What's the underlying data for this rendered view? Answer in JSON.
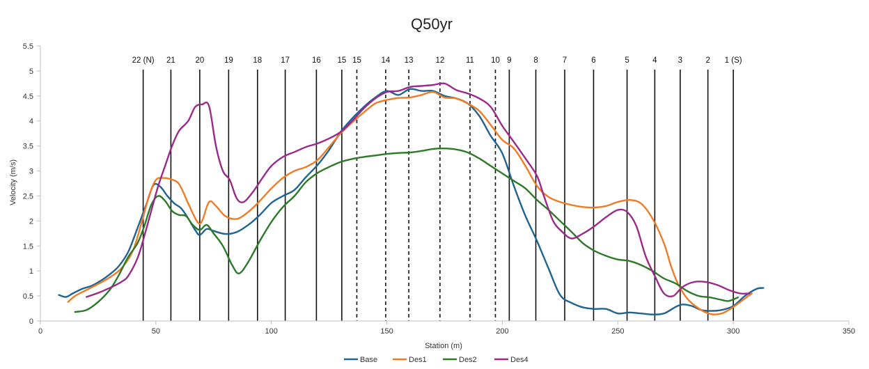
{
  "chart_data": {
    "type": "line",
    "title": "Q50yr",
    "xlabel": "Station (m)",
    "ylabel": "Velocity (m/s)",
    "xlim": [
      0,
      350
    ],
    "ylim": [
      0,
      5.5
    ],
    "x_ticks": [
      0,
      50,
      100,
      150,
      200,
      250,
      300,
      350
    ],
    "y_ticks": [
      0,
      0.5,
      1,
      1.5,
      2,
      2.5,
      3,
      3.5,
      4,
      4.5,
      5,
      5.5
    ],
    "grid": false,
    "legend": "bottom",
    "cross_sections": [
      {
        "label": "22 (N)",
        "x": 44.5,
        "style": "solid"
      },
      {
        "label": "21",
        "x": 56.5,
        "style": "solid"
      },
      {
        "label": "20",
        "x": 69,
        "style": "solid"
      },
      {
        "label": "19",
        "x": 81.5,
        "style": "solid"
      },
      {
        "label": "18",
        "x": 94,
        "style": "solid"
      },
      {
        "label": "17",
        "x": 106,
        "style": "solid"
      },
      {
        "label": "16",
        "x": 119.5,
        "style": "solid"
      },
      {
        "label": "15",
        "x": 130.5,
        "style": "solid"
      },
      {
        "label": "15",
        "x": 137,
        "style": "dashed"
      },
      {
        "label": "14",
        "x": 149.5,
        "style": "dashed"
      },
      {
        "label": "13",
        "x": 159.5,
        "style": "dashed"
      },
      {
        "label": "12",
        "x": 173,
        "style": "dashed"
      },
      {
        "label": "11",
        "x": 186,
        "style": "dashed"
      },
      {
        "label": "10",
        "x": 197,
        "style": "dashed"
      },
      {
        "label": "9",
        "x": 203,
        "style": "solid"
      },
      {
        "label": "8",
        "x": 214.5,
        "style": "solid"
      },
      {
        "label": "7",
        "x": 227,
        "style": "solid"
      },
      {
        "label": "6",
        "x": 239.5,
        "style": "solid"
      },
      {
        "label": "5",
        "x": 254,
        "style": "solid"
      },
      {
        "label": "4",
        "x": 266,
        "style": "solid"
      },
      {
        "label": "3",
        "x": 277,
        "style": "solid"
      },
      {
        "label": "2",
        "x": 289,
        "style": "solid"
      },
      {
        "label": "1 (S)",
        "x": 300,
        "style": "solid"
      }
    ],
    "series": [
      {
        "name": "Base",
        "color": "#1f6391",
        "points": [
          [
            8,
            0.52
          ],
          [
            11,
            0.48
          ],
          [
            14,
            0.55
          ],
          [
            18,
            0.64
          ],
          [
            22,
            0.7
          ],
          [
            26,
            0.8
          ],
          [
            30,
            0.93
          ],
          [
            34,
            1.1
          ],
          [
            38,
            1.38
          ],
          [
            42,
            1.85
          ],
          [
            46,
            2.35
          ],
          [
            49,
            2.72
          ],
          [
            52,
            2.68
          ],
          [
            55,
            2.5
          ],
          [
            58,
            2.35
          ],
          [
            61,
            2.25
          ],
          [
            64,
            2.05
          ],
          [
            67,
            1.82
          ],
          [
            69,
            1.72
          ],
          [
            72,
            1.84
          ],
          [
            75,
            1.8
          ],
          [
            80,
            1.74
          ],
          [
            85,
            1.78
          ],
          [
            90,
            1.92
          ],
          [
            95,
            2.12
          ],
          [
            100,
            2.36
          ],
          [
            105,
            2.5
          ],
          [
            110,
            2.62
          ],
          [
            115,
            2.88
          ],
          [
            120,
            3.12
          ],
          [
            125,
            3.42
          ],
          [
            130,
            3.78
          ],
          [
            135,
            4.05
          ],
          [
            140,
            4.28
          ],
          [
            145,
            4.47
          ],
          [
            150,
            4.6
          ],
          [
            155,
            4.52
          ],
          [
            160,
            4.64
          ],
          [
            165,
            4.6
          ],
          [
            170,
            4.6
          ],
          [
            175,
            4.5
          ],
          [
            180,
            4.45
          ],
          [
            185,
            4.35
          ],
          [
            190,
            4.1
          ],
          [
            195,
            3.7
          ],
          [
            200,
            3.35
          ],
          [
            205,
            2.7
          ],
          [
            210,
            2.1
          ],
          [
            215,
            1.6
          ],
          [
            220,
            1.05
          ],
          [
            225,
            0.52
          ],
          [
            230,
            0.36
          ],
          [
            235,
            0.27
          ],
          [
            240,
            0.24
          ],
          [
            245,
            0.24
          ],
          [
            250,
            0.15
          ],
          [
            255,
            0.17
          ],
          [
            260,
            0.15
          ],
          [
            265,
            0.13
          ],
          [
            270,
            0.15
          ],
          [
            275,
            0.28
          ],
          [
            278,
            0.33
          ],
          [
            282,
            0.3
          ],
          [
            286,
            0.22
          ],
          [
            290,
            0.2
          ],
          [
            295,
            0.22
          ],
          [
            300,
            0.3
          ],
          [
            305,
            0.5
          ],
          [
            310,
            0.64
          ],
          [
            313,
            0.66
          ]
        ]
      },
      {
        "name": "Des1",
        "color": "#f07b25",
        "points": [
          [
            12,
            0.38
          ],
          [
            15,
            0.5
          ],
          [
            20,
            0.62
          ],
          [
            25,
            0.74
          ],
          [
            30,
            0.87
          ],
          [
            35,
            1.05
          ],
          [
            40,
            1.4
          ],
          [
            44,
            2.0
          ],
          [
            47,
            2.5
          ],
          [
            50,
            2.82
          ],
          [
            53,
            2.86
          ],
          [
            56,
            2.84
          ],
          [
            60,
            2.74
          ],
          [
            64,
            2.35
          ],
          [
            68,
            1.98
          ],
          [
            70,
            2.0
          ],
          [
            73,
            2.38
          ],
          [
            76,
            2.3
          ],
          [
            80,
            2.1
          ],
          [
            85,
            2.04
          ],
          [
            90,
            2.18
          ],
          [
            95,
            2.4
          ],
          [
            100,
            2.65
          ],
          [
            105,
            2.86
          ],
          [
            110,
            3.0
          ],
          [
            115,
            3.08
          ],
          [
            120,
            3.22
          ],
          [
            125,
            3.48
          ],
          [
            130,
            3.75
          ],
          [
            135,
            3.97
          ],
          [
            140,
            4.17
          ],
          [
            145,
            4.35
          ],
          [
            150,
            4.42
          ],
          [
            155,
            4.46
          ],
          [
            160,
            4.47
          ],
          [
            165,
            4.52
          ],
          [
            170,
            4.58
          ],
          [
            175,
            4.47
          ],
          [
            180,
            4.45
          ],
          [
            185,
            4.35
          ],
          [
            190,
            4.2
          ],
          [
            195,
            3.92
          ],
          [
            200,
            3.62
          ],
          [
            205,
            3.45
          ],
          [
            210,
            3.1
          ],
          [
            215,
            2.7
          ],
          [
            220,
            2.48
          ],
          [
            225,
            2.38
          ],
          [
            230,
            2.32
          ],
          [
            235,
            2.28
          ],
          [
            240,
            2.27
          ],
          [
            245,
            2.3
          ],
          [
            250,
            2.38
          ],
          [
            255,
            2.42
          ],
          [
            260,
            2.35
          ],
          [
            265,
            2.05
          ],
          [
            270,
            1.55
          ],
          [
            273,
            1.1
          ],
          [
            276,
            0.75
          ],
          [
            280,
            0.45
          ],
          [
            285,
            0.25
          ],
          [
            290,
            0.14
          ],
          [
            295,
            0.15
          ],
          [
            300,
            0.28
          ],
          [
            305,
            0.45
          ],
          [
            308,
            0.55
          ]
        ]
      },
      {
        "name": "Des2",
        "color": "#2c7a28",
        "points": [
          [
            15,
            0.18
          ],
          [
            20,
            0.22
          ],
          [
            25,
            0.38
          ],
          [
            30,
            0.62
          ],
          [
            34,
            0.92
          ],
          [
            38,
            1.28
          ],
          [
            42,
            1.55
          ],
          [
            45,
            1.9
          ],
          [
            48,
            2.32
          ],
          [
            51,
            2.5
          ],
          [
            54,
            2.4
          ],
          [
            57,
            2.2
          ],
          [
            60,
            2.12
          ],
          [
            63,
            2.1
          ],
          [
            66,
            1.92
          ],
          [
            69,
            1.82
          ],
          [
            72,
            1.92
          ],
          [
            75,
            1.75
          ],
          [
            79,
            1.5
          ],
          [
            83,
            1.12
          ],
          [
            86,
            0.95
          ],
          [
            90,
            1.18
          ],
          [
            95,
            1.6
          ],
          [
            100,
            1.98
          ],
          [
            105,
            2.28
          ],
          [
            110,
            2.5
          ],
          [
            115,
            2.78
          ],
          [
            120,
            2.96
          ],
          [
            125,
            3.08
          ],
          [
            130,
            3.18
          ],
          [
            135,
            3.24
          ],
          [
            140,
            3.28
          ],
          [
            145,
            3.31
          ],
          [
            150,
            3.34
          ],
          [
            155,
            3.36
          ],
          [
            160,
            3.37
          ],
          [
            165,
            3.4
          ],
          [
            170,
            3.44
          ],
          [
            175,
            3.45
          ],
          [
            180,
            3.43
          ],
          [
            185,
            3.37
          ],
          [
            190,
            3.25
          ],
          [
            195,
            3.1
          ],
          [
            200,
            2.95
          ],
          [
            205,
            2.8
          ],
          [
            210,
            2.65
          ],
          [
            215,
            2.42
          ],
          [
            220,
            2.22
          ],
          [
            225,
            2.0
          ],
          [
            230,
            1.78
          ],
          [
            235,
            1.55
          ],
          [
            240,
            1.4
          ],
          [
            245,
            1.3
          ],
          [
            250,
            1.23
          ],
          [
            255,
            1.2
          ],
          [
            260,
            1.12
          ],
          [
            265,
            1.0
          ],
          [
            270,
            0.85
          ],
          [
            275,
            0.75
          ],
          [
            280,
            0.6
          ],
          [
            285,
            0.5
          ],
          [
            290,
            0.47
          ],
          [
            295,
            0.42
          ],
          [
            298,
            0.4
          ],
          [
            302,
            0.47
          ]
        ]
      },
      {
        "name": "Des4",
        "color": "#9a2a8a",
        "points": [
          [
            20,
            0.48
          ],
          [
            25,
            0.56
          ],
          [
            30,
            0.66
          ],
          [
            35,
            0.78
          ],
          [
            38,
            0.9
          ],
          [
            42,
            1.25
          ],
          [
            45,
            1.7
          ],
          [
            48,
            2.2
          ],
          [
            51,
            2.7
          ],
          [
            54,
            3.1
          ],
          [
            57,
            3.5
          ],
          [
            60,
            3.8
          ],
          [
            64,
            4.0
          ],
          [
            67,
            4.28
          ],
          [
            70,
            4.33
          ],
          [
            73,
            4.3
          ],
          [
            76,
            3.5
          ],
          [
            79,
            3.0
          ],
          [
            82,
            2.82
          ],
          [
            85,
            2.45
          ],
          [
            88,
            2.38
          ],
          [
            92,
            2.58
          ],
          [
            96,
            2.85
          ],
          [
            100,
            3.1
          ],
          [
            105,
            3.28
          ],
          [
            110,
            3.38
          ],
          [
            115,
            3.48
          ],
          [
            120,
            3.55
          ],
          [
            125,
            3.65
          ],
          [
            130,
            3.78
          ],
          [
            135,
            4.0
          ],
          [
            140,
            4.25
          ],
          [
            145,
            4.45
          ],
          [
            150,
            4.58
          ],
          [
            155,
            4.6
          ],
          [
            160,
            4.68
          ],
          [
            165,
            4.7
          ],
          [
            170,
            4.72
          ],
          [
            175,
            4.75
          ],
          [
            180,
            4.62
          ],
          [
            185,
            4.55
          ],
          [
            190,
            4.45
          ],
          [
            195,
            4.28
          ],
          [
            200,
            3.9
          ],
          [
            205,
            3.58
          ],
          [
            210,
            3.25
          ],
          [
            215,
            2.9
          ],
          [
            218,
            2.5
          ],
          [
            222,
            2.0
          ],
          [
            226,
            1.78
          ],
          [
            230,
            1.65
          ],
          [
            235,
            1.75
          ],
          [
            240,
            1.9
          ],
          [
            245,
            2.08
          ],
          [
            250,
            2.22
          ],
          [
            254,
            2.18
          ],
          [
            258,
            1.9
          ],
          [
            262,
            1.3
          ],
          [
            266,
            0.9
          ],
          [
            270,
            0.55
          ],
          [
            274,
            0.5
          ],
          [
            278,
            0.68
          ],
          [
            283,
            0.78
          ],
          [
            288,
            0.78
          ],
          [
            293,
            0.72
          ],
          [
            298,
            0.62
          ],
          [
            303,
            0.55
          ],
          [
            307,
            0.55
          ]
        ]
      }
    ]
  }
}
